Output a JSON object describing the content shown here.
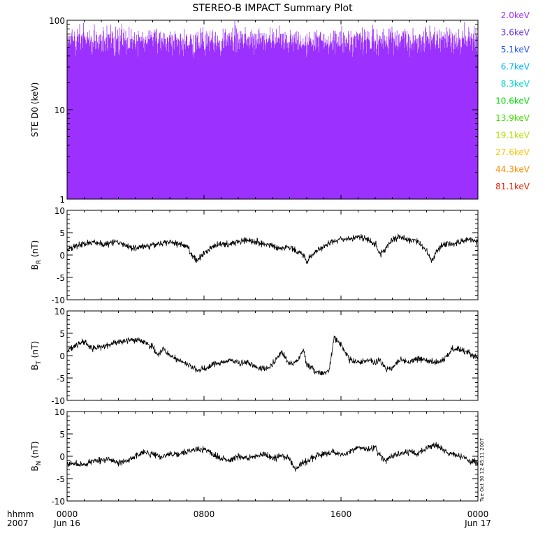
{
  "title": "STEREO-B IMPACT Summary Plot",
  "colors": {
    "channels": [
      "#9b30ff",
      "#6a3ae6",
      "#1f4fff",
      "#00b4ff",
      "#00d8c8",
      "#00d800",
      "#44e000",
      "#b0e000",
      "#ffc400",
      "#ff8c00",
      "#e82000"
    ]
  },
  "footer": {
    "xunits": "hhmm",
    "year": "2007",
    "tick_labels": [
      "0000",
      "0800",
      "1600",
      "0000"
    ],
    "date_labels": [
      "Jun 16",
      "Jun 17"
    ],
    "timestamp": "Tue Oct 30 12:45:11 2007"
  },
  "chart_data": [
    {
      "type": "line",
      "panel": "ste",
      "ylabel": "STE D0 (keV)",
      "yscale": "log",
      "ylim": [
        1,
        100
      ],
      "ytick_labels": [
        "1",
        "10",
        "100"
      ],
      "xlim": [
        "2007-06-16 00:00",
        "2007-06-17 00:00"
      ],
      "legend_position": "right",
      "series": [
        {
          "name": "2.0keV",
          "values_range": [
            33,
            100
          ],
          "typical": 60
        },
        {
          "name": "3.6keV",
          "values_range": [
            1,
            10
          ],
          "typical": 3
        },
        {
          "name": "5.1keV",
          "values_range": [
            1,
            4
          ],
          "typical": 2.5
        },
        {
          "name": "6.7keV",
          "values_range": [
            1,
            2
          ],
          "typical": 1.3
        },
        {
          "name": "8.3keV",
          "values_range": [
            1,
            2
          ],
          "typical": 1.2
        },
        {
          "name": "10.6keV",
          "values_range": [
            1,
            2
          ],
          "typical": 1.1
        },
        {
          "name": "13.9keV",
          "values_range": [
            1,
            2
          ],
          "typical": 1.1
        },
        {
          "name": "19.1keV",
          "values_range": [
            1,
            2
          ],
          "typical": 1.05
        },
        {
          "name": "27.6keV",
          "values_range": [
            1,
            2
          ],
          "typical": 1.05
        },
        {
          "name": "44.3keV",
          "values_range": [
            1,
            2
          ],
          "typical": 1.05
        },
        {
          "name": "81.1keV",
          "values_range": [
            1,
            2
          ],
          "typical": 1.05
        }
      ]
    },
    {
      "type": "line",
      "panel": "br",
      "ylabel": "B",
      "ylabel_sub": "R",
      "ylabel_unit": " (nT)",
      "ylim": [
        -10,
        10
      ],
      "ytick_labels": [
        "-10",
        "-5",
        "0",
        "5",
        "10"
      ],
      "yticks": [
        -10,
        -5,
        0,
        5,
        10
      ],
      "x_hours": [
        0,
        0.5,
        1,
        1.5,
        2,
        2.5,
        3,
        3.5,
        4,
        4.5,
        5,
        5.5,
        6,
        6.5,
        7,
        7.3,
        7.6,
        8,
        8.5,
        9,
        9.5,
        10,
        10.5,
        11,
        11.5,
        12,
        12.5,
        13,
        13.5,
        13.8,
        14,
        14.3,
        14.6,
        15,
        15.5,
        16,
        16.5,
        17,
        17.5,
        18,
        18.3,
        18.6,
        19,
        19.5,
        20,
        20.5,
        21,
        21.3,
        21.6,
        22,
        22.5,
        23,
        23.5,
        24
      ],
      "values": [
        1,
        2,
        2.5,
        3,
        2.5,
        2.5,
        3,
        2,
        1.5,
        2,
        2.2,
        2.5,
        3,
        2.5,
        2,
        0,
        -1.5,
        0.5,
        2,
        2.5,
        2.5,
        3,
        3.5,
        3,
        2.5,
        2,
        1.5,
        2,
        0.5,
        0,
        -1.5,
        0,
        1,
        2,
        3,
        3.5,
        3.5,
        4,
        3.5,
        2.5,
        0,
        1.5,
        3.5,
        4,
        3.5,
        3,
        1,
        -1.5,
        1,
        2.5,
        2.5,
        3,
        3.5,
        3
      ]
    },
    {
      "type": "line",
      "panel": "bt",
      "ylabel": "B",
      "ylabel_sub": "T",
      "ylabel_unit": " (nT)",
      "ylim": [
        -10,
        10
      ],
      "ytick_labels": [
        "-10",
        "-5",
        "0",
        "5",
        "10"
      ],
      "yticks": [
        -10,
        -5,
        0,
        5,
        10
      ],
      "x_hours": [
        0,
        0.5,
        1,
        1.5,
        2,
        2.5,
        3,
        3.5,
        4,
        4.5,
        5,
        5.3,
        5.6,
        6,
        6.5,
        7,
        7.5,
        8,
        8.5,
        9,
        9.5,
        10,
        10.5,
        11,
        11.5,
        12,
        12.5,
        13,
        13.5,
        13.8,
        14,
        14.5,
        15,
        15.3,
        15.6,
        16,
        16.5,
        17,
        17.5,
        18,
        18.3,
        18.6,
        19,
        19.5,
        20,
        20.5,
        21,
        21.5,
        22,
        22.5,
        23,
        23.5,
        24
      ],
      "values": [
        1,
        2.5,
        3,
        1.5,
        2,
        2.5,
        3,
        3.5,
        3.5,
        3,
        2,
        0,
        1.5,
        0,
        -1,
        -2,
        -3,
        -3,
        -2,
        -1.5,
        -1,
        -1.5,
        -1.5,
        -2.5,
        -3,
        -2,
        1,
        -2,
        -1,
        1.5,
        -2,
        -3.5,
        -4,
        -3.5,
        4,
        2.5,
        -1,
        -1.5,
        -1,
        -1.5,
        -1,
        -3,
        -2.5,
        -1,
        -1.5,
        -0.5,
        -1,
        -1.5,
        -1,
        1.5,
        1.5,
        0.5,
        -0.5
      ]
    },
    {
      "type": "line",
      "panel": "bn",
      "ylabel": "B",
      "ylabel_sub": "N",
      "ylabel_unit": " (nT)",
      "ylim": [
        -10,
        10
      ],
      "ytick_labels": [
        "-10",
        "-5",
        "0",
        "5",
        "10"
      ],
      "yticks": [
        -10,
        -5,
        0,
        5,
        10
      ],
      "x_hours": [
        0,
        0.5,
        1,
        1.5,
        2,
        2.5,
        3,
        3.5,
        4,
        4.5,
        5,
        5.5,
        6,
        6.5,
        7,
        7.5,
        8,
        8.5,
        9,
        9.5,
        10,
        10.5,
        11,
        11.5,
        12,
        12.5,
        13,
        13.3,
        13.6,
        14,
        14.5,
        15,
        15.5,
        16,
        16.5,
        17,
        17.5,
        18,
        18.3,
        18.6,
        19,
        19.5,
        20,
        20.5,
        21,
        21.5,
        22,
        22.5,
        23,
        23.5,
        24
      ],
      "values": [
        -2,
        -1.5,
        -2,
        -1,
        -1,
        -0.5,
        -1.5,
        -1,
        0,
        1,
        0.5,
        0,
        0.5,
        0.5,
        1,
        1.5,
        1.5,
        0.5,
        -0.5,
        -1,
        0,
        -0.5,
        0,
        0.5,
        -0.5,
        0,
        -0.5,
        -3,
        -2,
        -1,
        0,
        0.5,
        1,
        0.5,
        1,
        2,
        1.5,
        2,
        0,
        -1,
        0,
        0.5,
        1,
        0.5,
        2,
        2.5,
        1.5,
        0.5,
        0,
        -1,
        -1.5
      ]
    }
  ]
}
